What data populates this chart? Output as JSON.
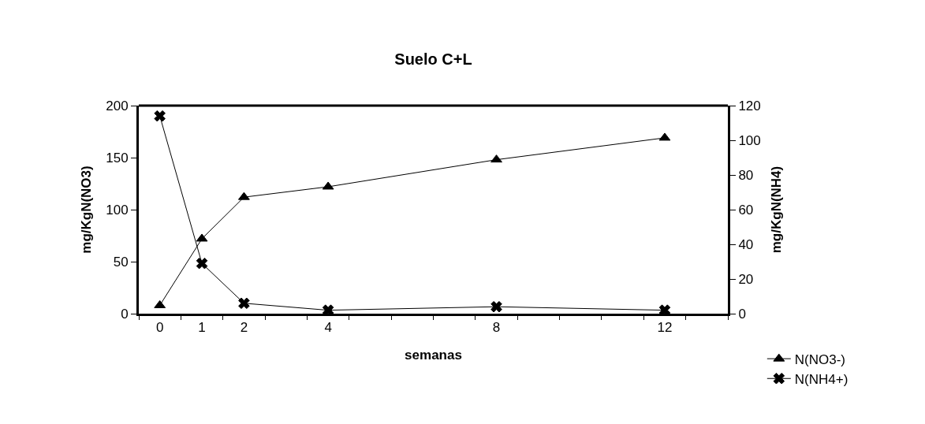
{
  "chart_data": {
    "type": "line",
    "title": "Suelo C+L",
    "xlabel": "semanas",
    "ylabel": "mg/KgN(NO3)",
    "y2label": "mg/KgN(NH4)",
    "x": [
      0,
      1,
      2,
      4,
      8,
      12
    ],
    "series": [
      {
        "name": "N(NO3-)",
        "color": "#000000",
        "marker": "triangle",
        "values": [
          8,
          72,
          112,
          122,
          148,
          169
        ]
      },
      {
        "name": "N(NH4+)",
        "color": "#000000",
        "marker": "cross",
        "axis": "y2",
        "values": [
          114,
          29,
          6,
          2,
          4,
          2
        ]
      }
    ],
    "xlim": [
      -0.5,
      13.5
    ],
    "xticks": [
      0,
      1,
      2,
      4,
      8,
      12,
      {
        "value": -0.5,
        "label": null
      },
      {
        "value": 0.5,
        "label": null
      },
      {
        "value": 1.5,
        "label": null
      },
      {
        "value": 2.5,
        "label": null
      },
      {
        "value": 3.5,
        "label": null
      },
      {
        "value": 4.5,
        "label": null
      },
      {
        "value": 5.5,
        "label": null
      },
      {
        "value": 6.5,
        "label": null
      },
      {
        "value": 7.5,
        "label": null
      },
      {
        "value": 8.5,
        "label": null
      },
      {
        "value": 9.5,
        "label": null
      },
      {
        "value": 10.5,
        "label": null
      },
      {
        "value": 11.5,
        "label": null
      },
      {
        "value": 12.5,
        "label": null
      },
      {
        "value": 13.5,
        "label": null
      }
    ],
    "ylim": [
      0,
      200
    ],
    "yticks": [
      0,
      50,
      100,
      150,
      200
    ],
    "y2lim": [
      0,
      120
    ],
    "y2ticks": [
      0,
      20,
      40,
      60,
      80,
      100,
      120
    ],
    "legend": "bottom right",
    "line_style": "solid"
  }
}
